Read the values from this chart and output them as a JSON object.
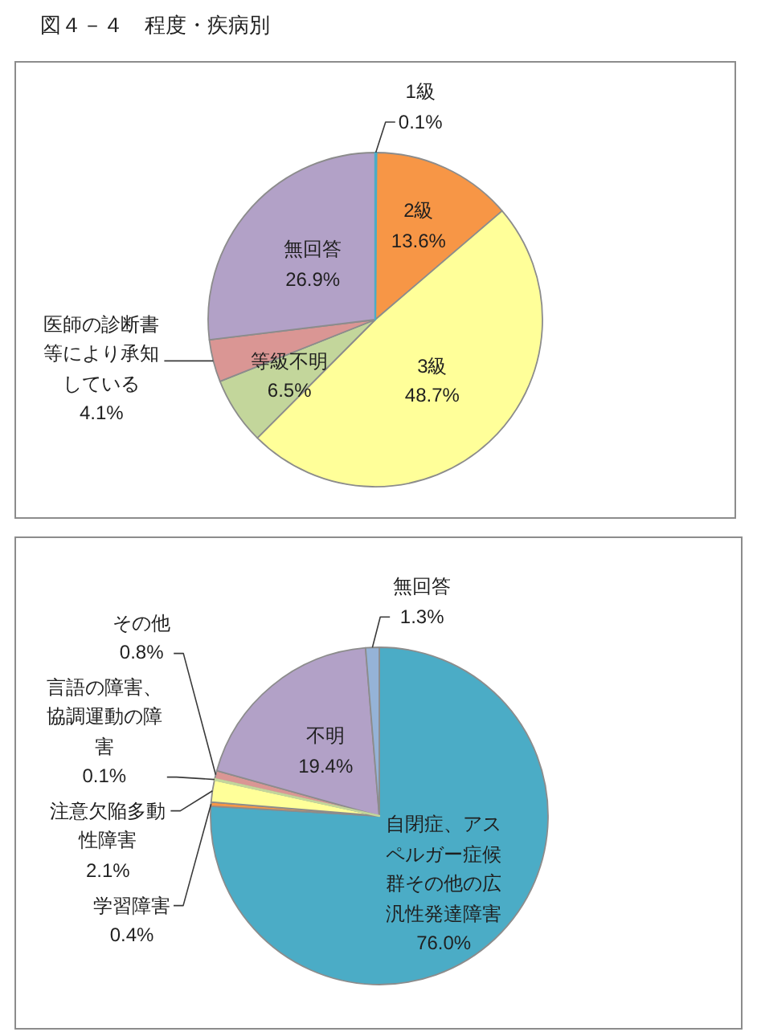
{
  "chart_data": [
    {
      "type": "pie",
      "title": "図４－４　程度・疾病別",
      "categories": [
        "1級",
        "2級",
        "3級",
        "等級不明",
        "医師の診断書等により承知している",
        "無回答"
      ],
      "values": [
        0.1,
        13.6,
        48.7,
        6.5,
        4.1,
        26.9
      ],
      "value_labels": [
        "0.1%",
        "13.6%",
        "48.7%",
        "6.5%",
        "4.1%",
        "26.9%"
      ],
      "colors": [
        "#4bacc6",
        "#f79646",
        "#ffff99",
        "#c3d69b",
        "#da9694",
        "#b2a1c7"
      ]
    },
    {
      "type": "pie",
      "categories": [
        "自閉症、アスペルガー症候群その他の広汎性発達障害",
        "学習障害",
        "注意欠陥多動性障害",
        "言語の障害、協調運動の障害",
        "その他",
        "不明",
        "無回答"
      ],
      "values": [
        76.0,
        0.4,
        2.1,
        0.1,
        0.8,
        19.4,
        1.3
      ],
      "value_labels": [
        "76.0%",
        "0.4%",
        "2.1%",
        "0.1%",
        "0.8%",
        "19.4%",
        "1.3%"
      ],
      "colors": [
        "#4bacc6",
        "#f79646",
        "#ffff99",
        "#c3d69b",
        "#da9694",
        "#b2a1c7",
        "#95b3d7"
      ]
    }
  ]
}
